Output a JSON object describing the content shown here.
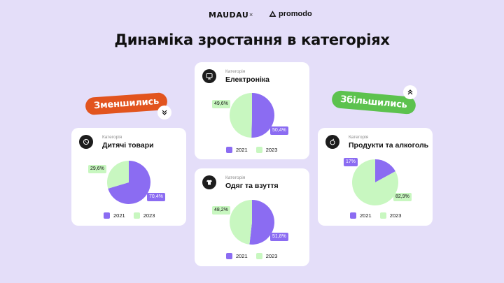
{
  "logos": {
    "left": "MAUDAU",
    "sep": "×",
    "right": "promodo"
  },
  "title": "Динаміка зростання в категоріях",
  "tags": {
    "decreased": "Зменшились",
    "increased": "Збільшились"
  },
  "colors": {
    "c2021": "#8b6cf2",
    "c2023": "#c8f7c0",
    "tag_down": "#e2541e",
    "tag_up": "#5cc24e"
  },
  "chart_data": [
    {
      "type": "pie",
      "category_label": "Категорія",
      "title": "Дитячі товари",
      "icon": "cookie-icon",
      "series": [
        {
          "name": "2021",
          "value": 70.4,
          "label": "70,4%"
        },
        {
          "name": "2023",
          "value": 29.6,
          "label": "29,6%"
        }
      ],
      "legend": [
        "2021",
        "2023"
      ]
    },
    {
      "type": "pie",
      "category_label": "Категорія",
      "title": "Електроніка",
      "icon": "monitor-icon",
      "series": [
        {
          "name": "2021",
          "value": 50.4,
          "label": "50,4%"
        },
        {
          "name": "2023",
          "value": 49.6,
          "label": "49,6%"
        }
      ],
      "legend": [
        "2021",
        "2023"
      ]
    },
    {
      "type": "pie",
      "category_label": "Категорія",
      "title": "Одяг та взуття",
      "icon": "tshirt-icon",
      "series": [
        {
          "name": "2021",
          "value": 51.8,
          "label": "51,8%"
        },
        {
          "name": "2023",
          "value": 48.2,
          "label": "48,2%"
        }
      ],
      "legend": [
        "2021",
        "2023"
      ]
    },
    {
      "type": "pie",
      "category_label": "Категорія",
      "title": "Продукти та алкоголь",
      "icon": "apple-icon",
      "series": [
        {
          "name": "2021",
          "value": 17.0,
          "label": "17%"
        },
        {
          "name": "2023",
          "value": 82.9,
          "label": "82,9%"
        }
      ],
      "legend": [
        "2021",
        "2023"
      ]
    }
  ]
}
